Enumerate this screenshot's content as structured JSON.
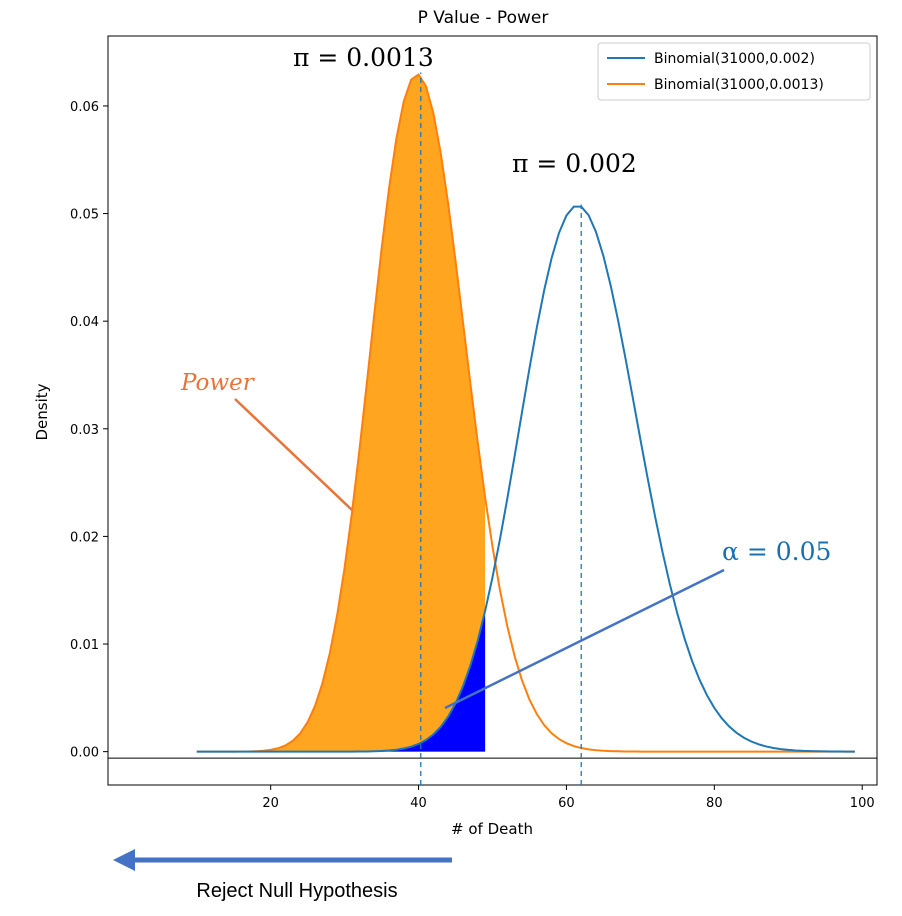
{
  "chart_data": {
    "type": "line",
    "title": "P Value - Power",
    "xlabel": "# of Death",
    "ylabel": "Density",
    "xlim": [
      -2,
      102
    ],
    "ylim": [
      -0.0031,
      0.0665
    ],
    "x_ticks": [
      20,
      40,
      60,
      80,
      100
    ],
    "y_ticks": [
      0.0,
      0.01,
      0.02,
      0.03,
      0.04,
      0.05,
      0.06
    ],
    "x_tick_labels": [
      "20",
      "40",
      "60",
      "80",
      "100"
    ],
    "y_tick_labels": [
      "0.00",
      "0.01",
      "0.02",
      "0.03",
      "0.04",
      "0.05",
      "0.06"
    ],
    "x_range": [
      10,
      99
    ],
    "series": [
      {
        "name": "Binomial(31000,0.002)",
        "n": 31000,
        "p": 0.002,
        "color": "#1f77b4"
      },
      {
        "name": "Binomial(31000,0.0013)",
        "n": 31000,
        "p": 0.0013,
        "color": "#ff7f0e"
      }
    ],
    "shaded_regions": [
      {
        "label": "Power",
        "under": "Binomial(31000,0.0013)",
        "x_from": 10,
        "x_to": 49,
        "color": "#ffa520"
      },
      {
        "label": "alpha",
        "under": "Binomial(31000,0.002)",
        "x_from": 10,
        "x_to": 49,
        "color": "#0000ff"
      }
    ],
    "vlines": [
      {
        "x": 40.3,
        "color": "#1f77b4",
        "style": "dashed"
      },
      {
        "x": 62,
        "color": "#1f77b4",
        "style": "dashed"
      }
    ],
    "hline": {
      "y": -0.0006,
      "color": "#000000"
    },
    "annotations": {
      "pi_low": "π = 0.0013",
      "pi_high": "π = 0.002",
      "power": "Power",
      "alpha": "α = 0.05"
    },
    "legend_position": "top-right",
    "grid": false
  },
  "footer": {
    "reject_label": "Reject Null Hypothesis"
  },
  "colors": {
    "orange_line": "#ff7f0e",
    "blue_line": "#1f77b4",
    "power_fill": "#ffa520",
    "alpha_fill": "#0000ff",
    "power_text": "#e8743b",
    "alpha_text": "#1a6fae",
    "arrow_blue": "#4472c4"
  }
}
